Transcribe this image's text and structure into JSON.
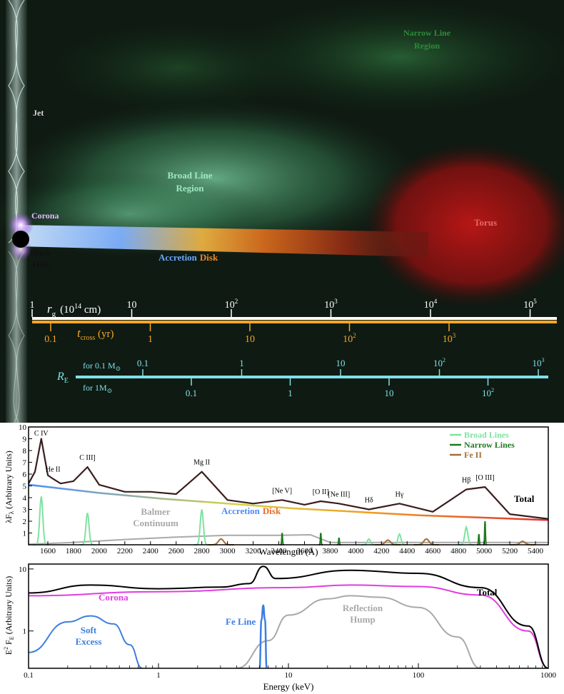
{
  "illustration": {
    "labels": {
      "narrow_line_region": [
        "Narrow Line",
        "Region"
      ],
      "jet": "Jet",
      "broad_line_region": [
        "Broad Line",
        "Region"
      ],
      "corona": "Corona",
      "black_hole": [
        "Black",
        "Hole"
      ],
      "torus": "Torus",
      "accretion_word": "Accretion",
      "disk_word": "Disk"
    },
    "scales": {
      "rg": {
        "label_sym": "r",
        "label_sub": "g",
        "label_unit": "(10",
        "label_exp": "14",
        "label_end": " cm)",
        "ticks": [
          {
            "base": "1",
            "exp": "",
            "value": 1
          },
          {
            "base": "10",
            "exp": "",
            "value": 10
          },
          {
            "base": "10",
            "exp": "2",
            "value": 100
          },
          {
            "base": "10",
            "exp": "3",
            "value": 1000
          },
          {
            "base": "10",
            "exp": "4",
            "value": 10000
          },
          {
            "base": "10",
            "exp": "5",
            "value": 100000
          }
        ]
      },
      "tcross": {
        "label_sym": "t",
        "label_sub": "cross",
        "label_unit": " (yr)",
        "ticks": [
          {
            "base": "0.1",
            "exp": "",
            "value": 0.1
          },
          {
            "base": "1",
            "exp": "",
            "value": 1
          },
          {
            "base": "10",
            "exp": "",
            "value": 10
          },
          {
            "base": "10",
            "exp": "2",
            "value": 100
          },
          {
            "base": "10",
            "exp": "3",
            "value": 1000
          }
        ]
      },
      "re": {
        "label_sym": "R",
        "label_sub": "E",
        "upper_label": "for 0.1 M",
        "lower_label": "for 1M",
        "sun": "⊙",
        "upper_ticks": [
          {
            "base": "0.1",
            "exp": "",
            "value": 0.1
          },
          {
            "base": "1",
            "exp": "",
            "value": 1
          },
          {
            "base": "10",
            "exp": "",
            "value": 10
          },
          {
            "base": "10",
            "exp": "2",
            "value": 100
          },
          {
            "base": "10",
            "exp": "3",
            "value": 1000
          }
        ],
        "lower_ticks": [
          {
            "base": "0.1",
            "exp": "",
            "value": 0.1
          },
          {
            "base": "1",
            "exp": "",
            "value": 1
          },
          {
            "base": "10",
            "exp": "",
            "value": 10
          },
          {
            "base": "10",
            "exp": "2",
            "value": 100
          }
        ]
      }
    }
  },
  "optical_panel": {
    "xlabel": "Wavelength (Å)",
    "ylabel_main": "λF",
    "ylabel_sub": "λ",
    "ylabel_rest": " (Arbitrary Units)",
    "xlim": [
      1450,
      5500
    ],
    "ylim": [
      0,
      10
    ],
    "xticks": [
      1600,
      1800,
      2000,
      2200,
      2400,
      2600,
      2800,
      3000,
      3200,
      3400,
      3600,
      3800,
      4000,
      4200,
      4400,
      4600,
      4800,
      5000,
      5200,
      5400
    ],
    "yticks": [
      1,
      2,
      3,
      4,
      5,
      6,
      7,
      8,
      9,
      10
    ],
    "legend": [
      {
        "name": "Broad Lines",
        "color": "#7ee2a0"
      },
      {
        "name": "Narrow Lines",
        "color": "#1f7a1f"
      },
      {
        "name": "Fe II",
        "color": "#a0703a"
      }
    ],
    "line_labels": [
      {
        "text": "C IV",
        "wave": 1549
      },
      {
        "text": "He II",
        "wave": 1640
      },
      {
        "text": "C III]",
        "wave": 1909
      },
      {
        "text": "Mg II",
        "wave": 2800
      },
      {
        "text": "[Ne V]",
        "wave": 3426
      },
      {
        "text": "[O II]",
        "wave": 3727
      },
      {
        "text": "[Ne III]",
        "wave": 3869
      },
      {
        "text": "Hδ",
        "wave": 4102
      },
      {
        "text": "Hγ",
        "wave": 4340
      },
      {
        "text": "Hβ",
        "wave": 4861
      },
      {
        "text": "[O III]",
        "wave": 5007
      }
    ],
    "annotations": {
      "total": "Total",
      "balmer": [
        "Balmer",
        "Continuum"
      ],
      "accretion": "Accretion",
      "disk": "Disk"
    },
    "colors": {
      "total": "#3a1e1e",
      "broad": "#7ee2a0",
      "narrow": "#1f7a1f",
      "feii": "#a0703a",
      "balmer": "#a9a9a9"
    }
  },
  "chart_data": [
    {
      "type": "line",
      "title": "",
      "xlabel": "Wavelength (Å)",
      "ylabel": "λF_λ (Arbitrary Units)",
      "xlim": [
        1450,
        5500
      ],
      "ylim": [
        0,
        10
      ],
      "series": [
        {
          "name": "Total",
          "x": [
            1450,
            1500,
            1549,
            1600,
            1640,
            1700,
            1800,
            1909,
            2000,
            2200,
            2400,
            2600,
            2800,
            3000,
            3200,
            3426,
            3600,
            3727,
            3869,
            4102,
            4340,
            4600,
            4861,
            5007,
            5200,
            5500
          ],
          "y": [
            5.2,
            6.2,
            9.0,
            5.9,
            5.6,
            5.2,
            5.4,
            6.6,
            5.1,
            4.5,
            4.5,
            4.3,
            6.2,
            3.8,
            3.5,
            3.8,
            3.4,
            3.7,
            3.5,
            3.0,
            3.5,
            2.8,
            4.7,
            4.9,
            2.6,
            2.2
          ]
        },
        {
          "name": "Accretion Disk",
          "x": [
            1450,
            2000,
            2500,
            3000,
            3500,
            4000,
            4500,
            5000,
            5500
          ],
          "y": [
            5.1,
            4.4,
            3.9,
            3.5,
            3.1,
            2.8,
            2.5,
            2.3,
            2.1
          ]
        },
        {
          "name": "Balmer Continuum",
          "x": [
            1450,
            1800,
            2200,
            2600,
            3000,
            3400,
            3646,
            3800,
            5500
          ],
          "y": [
            0.05,
            0.2,
            0.45,
            0.65,
            0.8,
            0.8,
            0.85,
            0.2,
            0.2
          ]
        },
        {
          "name": "Broad Lines",
          "peaks": [
            [
              1549,
              4.1
            ],
            [
              1909,
              2.7
            ],
            [
              2800,
              3.0
            ],
            [
              4102,
              0.5
            ],
            [
              4340,
              0.9
            ],
            [
              4861,
              1.5
            ]
          ]
        },
        {
          "name": "Narrow Lines",
          "peaks": [
            [
              3426,
              1.0
            ],
            [
              3727,
              1.0
            ],
            [
              3869,
              0.6
            ],
            [
              4959,
              0.9
            ],
            [
              5007,
              2.0
            ]
          ]
        },
        {
          "name": "Fe II",
          "peaks": [
            [
              2950,
              0.5
            ],
            [
              4250,
              0.4
            ],
            [
              4550,
              0.5
            ],
            [
              5300,
              0.3
            ]
          ]
        }
      ]
    },
    {
      "type": "line",
      "title": "",
      "xlabel": "Energy (keV)",
      "ylabel": "E² F_E (Arbitrary Units)",
      "xlim": [
        0.1,
        1000
      ],
      "log_x": true,
      "log_y": true,
      "ylim": [
        0.25,
        12
      ],
      "series": [
        {
          "name": "Total",
          "x": [
            0.1,
            0.3,
            1,
            3,
            5,
            6.4,
            8,
            30,
            100,
            300,
            700,
            1000
          ],
          "y": [
            4.1,
            5.5,
            4.8,
            5.1,
            5.8,
            11.0,
            7.0,
            9.5,
            8.5,
            5.0,
            1.2,
            0.25
          ]
        },
        {
          "name": "Corona",
          "x": [
            0.1,
            1,
            10,
            30,
            100,
            300,
            700,
            1000
          ],
          "y": [
            3.7,
            4.3,
            5.0,
            5.5,
            5.2,
            3.8,
            1.0,
            0.25
          ]
        },
        {
          "name": "Soft Excess",
          "x": [
            0.1,
            0.2,
            0.3,
            0.45,
            0.6,
            0.75
          ],
          "y": [
            0.45,
            1.4,
            1.75,
            1.3,
            0.6,
            0.25
          ]
        },
        {
          "name": "Fe Line",
          "x": [
            6.0,
            6.2,
            6.4,
            6.6,
            6.8
          ],
          "y": [
            0.25,
            1.5,
            2.6,
            1.5,
            0.25
          ]
        },
        {
          "name": "Reflection Hump",
          "x": [
            4,
            7,
            10,
            20,
            30,
            50,
            100,
            200,
            300
          ],
          "y": [
            0.25,
            0.7,
            1.8,
            3.3,
            3.7,
            3.5,
            2.4,
            0.8,
            0.25
          ]
        }
      ]
    }
  ],
  "xray_panel": {
    "xlabel": "Energy (keV)",
    "ylabel_pre": "E",
    "ylabel_sup": "2",
    "ylabel_mid": " F",
    "ylabel_sub": "E",
    "ylabel_rest": " (Arbitrary Units)",
    "xticks": [
      {
        "label": "0.1",
        "value": 0.1
      },
      {
        "label": "1",
        "value": 1
      },
      {
        "label": "10",
        "value": 10
      },
      {
        "label": "100",
        "value": 100
      },
      {
        "label": "1000",
        "value": 1000
      }
    ],
    "yticks": [
      {
        "label": "1",
        "value": 1
      },
      {
        "label": "10",
        "value": 10
      }
    ],
    "annotations": {
      "total": "Total",
      "corona": "Corona",
      "soft": [
        "Soft",
        "Excess"
      ],
      "feline": "Fe Line",
      "reflection": [
        "Reflection",
        "Hump"
      ]
    },
    "colors": {
      "total": "#000000",
      "corona": "#e13ddf",
      "soft": "#3d7fe0",
      "fe": "#3d7fe0",
      "reflection": "#a9a9a9"
    }
  }
}
